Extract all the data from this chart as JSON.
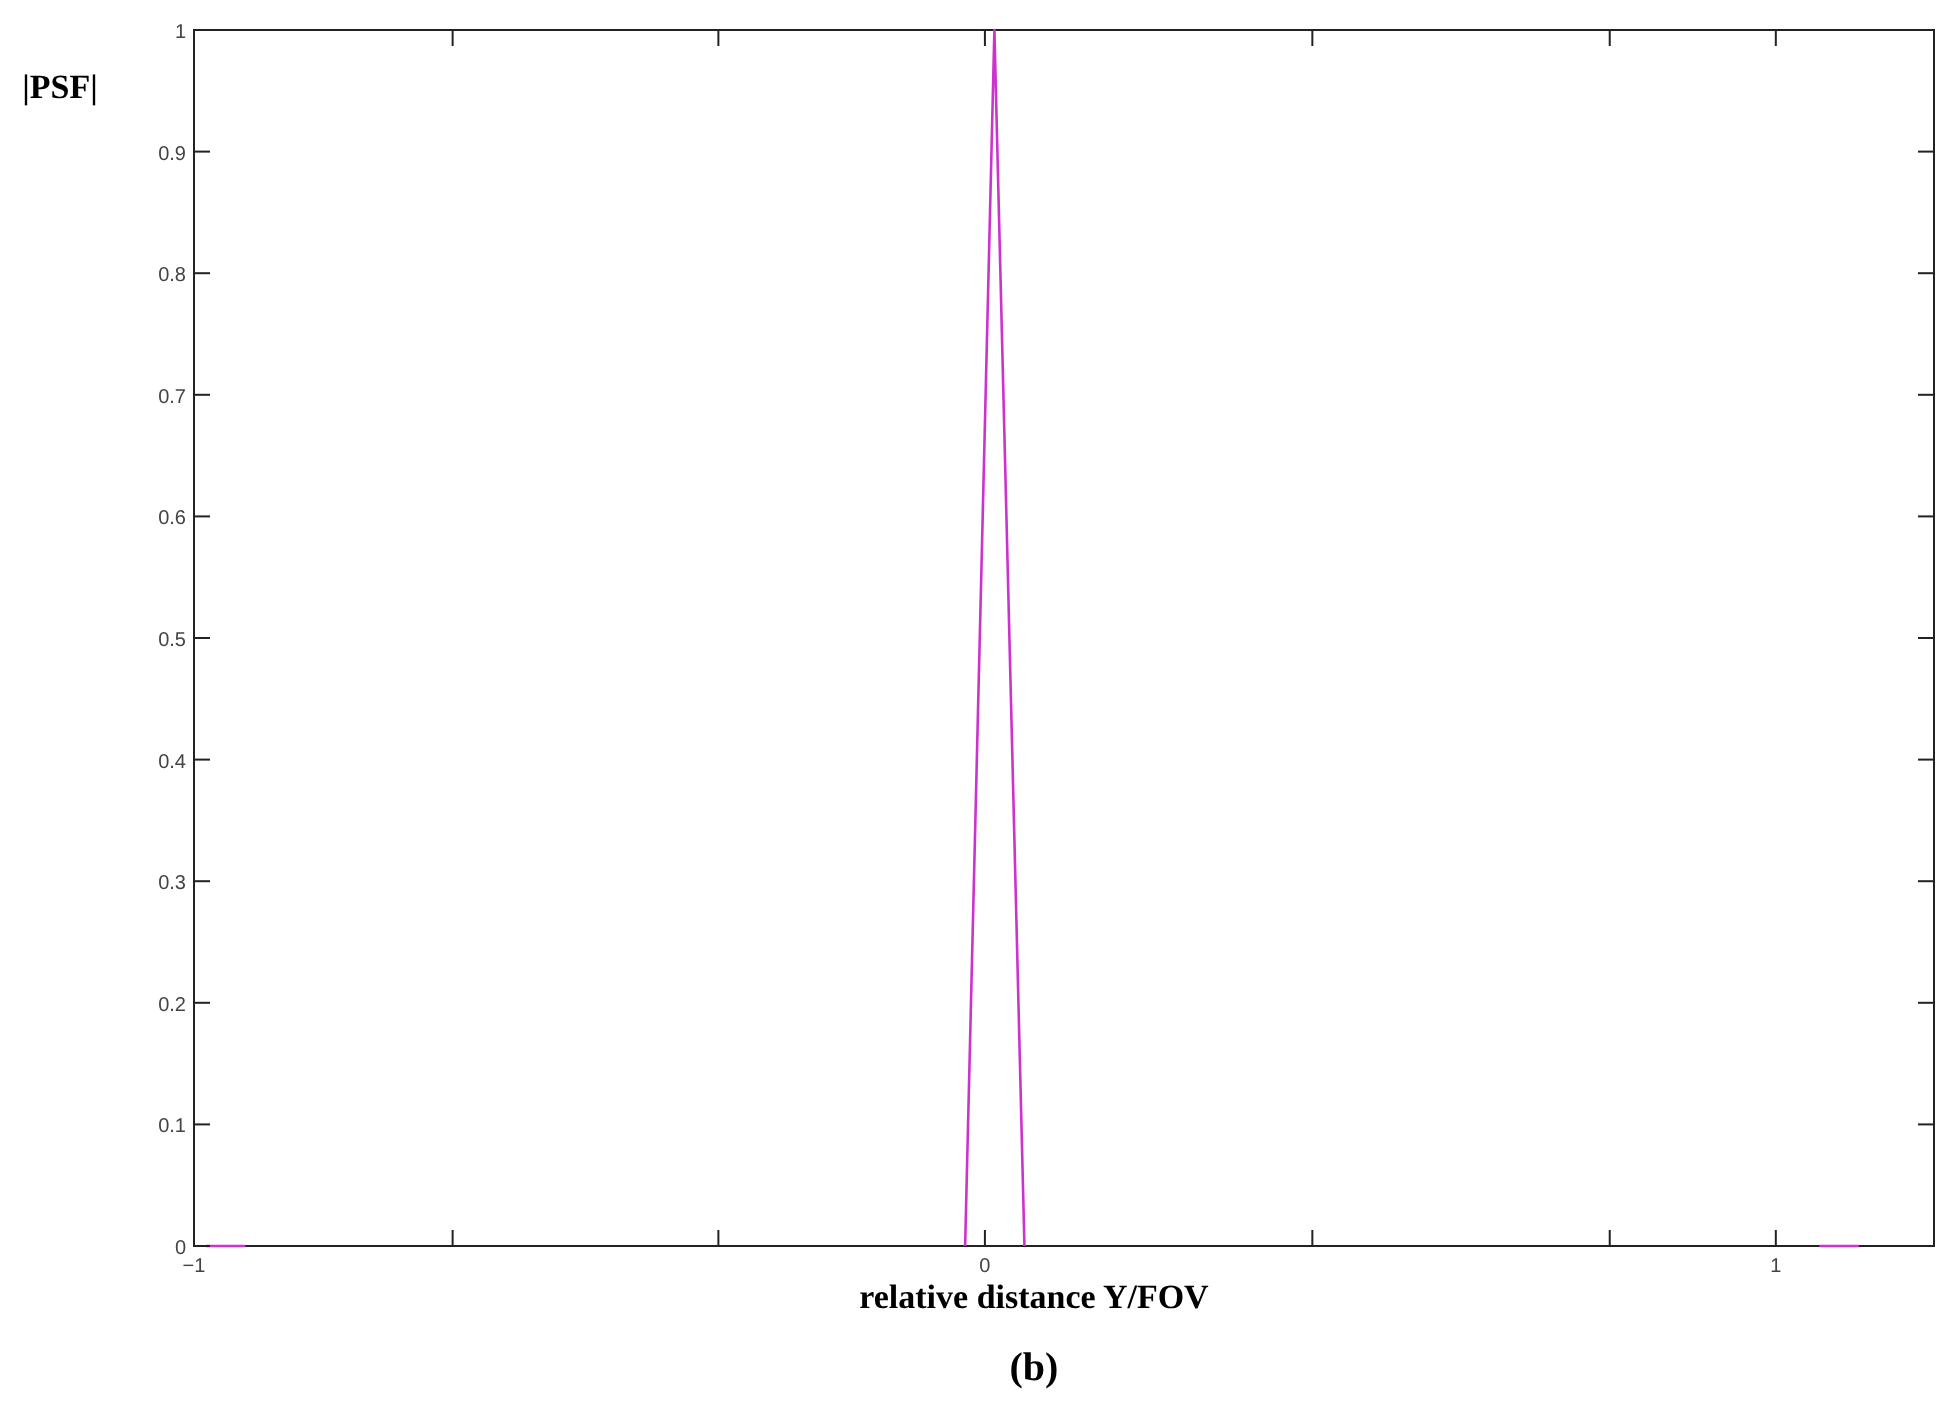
{
  "chart_data": {
    "type": "line",
    "xlabel": "relative distance Y/FOV",
    "ylabel": "|PSF|",
    "annotations": [
      "(b)"
    ],
    "x": [
      -0.985,
      -0.935,
      -0.5,
      -0.025,
      0.012,
      0.05,
      0.5,
      1.055,
      1.105
    ],
    "series": [
      {
        "color": "#cc33cc",
        "values": [
          0,
          0,
          null,
          0,
          1,
          0,
          null,
          0,
          0
        ]
      }
    ],
    "xlim": [
      -1,
      1.2
    ],
    "xticks": [
      {
        "value": -1,
        "label": "−1"
      },
      {
        "value": -0.673,
        "label": null
      },
      {
        "value": -0.337,
        "label": null
      },
      0,
      {
        "value": 0.414,
        "label": null
      },
      {
        "value": 0.79,
        "label": null
      },
      1
    ],
    "ylim": [
      0,
      1
    ],
    "yticks": [
      0,
      0.1,
      0.2,
      0.3,
      0.4,
      0.5,
      0.6,
      0.7,
      0.8,
      0.9,
      1
    ],
    "grid": false,
    "marker": "none",
    "line_style": "solid"
  }
}
